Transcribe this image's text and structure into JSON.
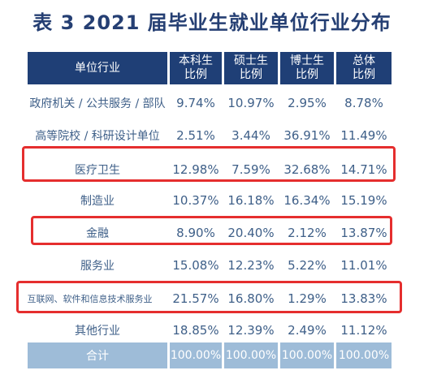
{
  "title": "表 3  2021 届毕业生就业单位行业分布",
  "header": {
    "industry": "单位行业",
    "undergrad": [
      "本科生",
      "比例"
    ],
    "master": [
      "硕士生",
      "比例"
    ],
    "phd": [
      "博士生",
      "比例"
    ],
    "overall": [
      "总体",
      "比例"
    ]
  },
  "rows": [
    {
      "industry": "政府机关 / 公共服务 / 部队",
      "undergrad": "9.74%",
      "master": "10.97%",
      "phd": "2.95%",
      "overall": "8.78%",
      "highlighted": false
    },
    {
      "industry": "高等院校 / 科研设计单位",
      "undergrad": "2.51%",
      "master": "3.44%",
      "phd": "36.91%",
      "overall": "11.49%",
      "highlighted": false
    },
    {
      "industry": "医疗卫生",
      "undergrad": "12.98%",
      "master": "7.59%",
      "phd": "32.68%",
      "overall": "14.71%",
      "highlighted": true
    },
    {
      "industry": "制造业",
      "undergrad": "10.37%",
      "master": "16.18%",
      "phd": "16.34%",
      "overall": "15.19%",
      "highlighted": false
    },
    {
      "industry": "金融",
      "undergrad": "8.90%",
      "master": "20.40%",
      "phd": "2.12%",
      "overall": "13.87%",
      "highlighted": true
    },
    {
      "industry": "服务业",
      "undergrad": "15.08%",
      "master": "12.23%",
      "phd": "5.22%",
      "overall": "11.01%",
      "highlighted": false
    },
    {
      "industry": "互联网、软件和信息技术服务业",
      "undergrad": "21.57%",
      "master": "16.80%",
      "phd": "1.29%",
      "overall": "13.83%",
      "highlighted": true
    },
    {
      "industry": "其他行业",
      "undergrad": "18.85%",
      "master": "12.39%",
      "phd": "2.49%",
      "overall": "11.12%",
      "highlighted": false
    }
  ],
  "total": {
    "industry": "合计",
    "undergrad": "100.00%",
    "master": "100.00%",
    "phd": "100.00%",
    "overall": "100.00%"
  },
  "colors": {
    "header_bg": "#1f3f76",
    "title": "#253f73",
    "text": "#3e5f88",
    "total_bg": "#9ebcd8",
    "highlight_border": "#e52e2e"
  }
}
